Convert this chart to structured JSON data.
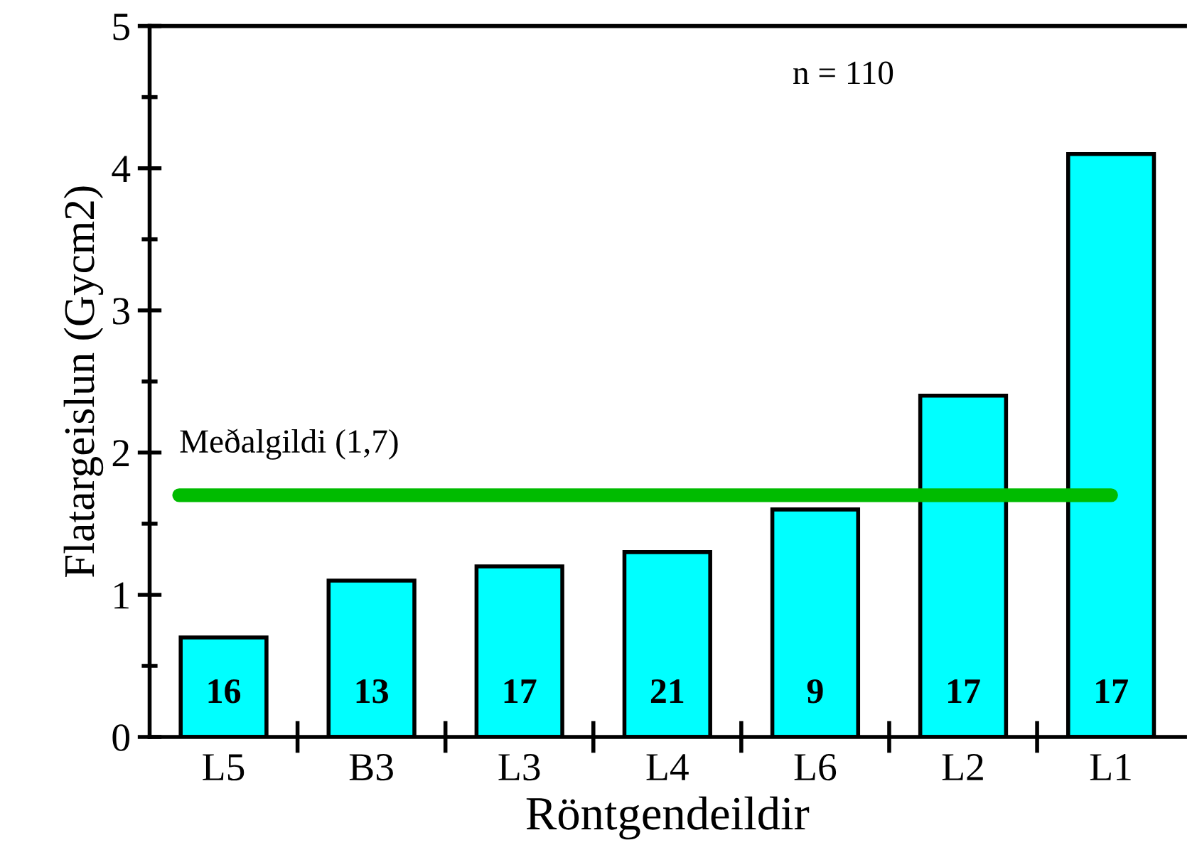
{
  "chart_data": {
    "type": "bar",
    "xlabel": "Röntgendeildir",
    "ylabel": "Flatargeislun (Gycm2)",
    "categories": [
      "L5",
      "B3",
      "L3",
      "L4",
      "L6",
      "L2",
      "L1"
    ],
    "values": [
      0.7,
      1.1,
      1.2,
      1.3,
      1.6,
      2.4,
      4.1
    ],
    "color": "#00ffff",
    "ylim": [
      0,
      5
    ],
    "yticks": [
      0,
      1,
      2,
      3,
      4,
      5
    ],
    "grid": false,
    "ref_lines": [
      {
        "axis": "y",
        "value": 1.7,
        "label": "Meðalgildi (1,7)",
        "color": "#00bb00"
      }
    ],
    "annotations": [
      "n = 110",
      "16",
      "13",
      "17",
      "21",
      "9",
      "17",
      "17"
    ]
  }
}
